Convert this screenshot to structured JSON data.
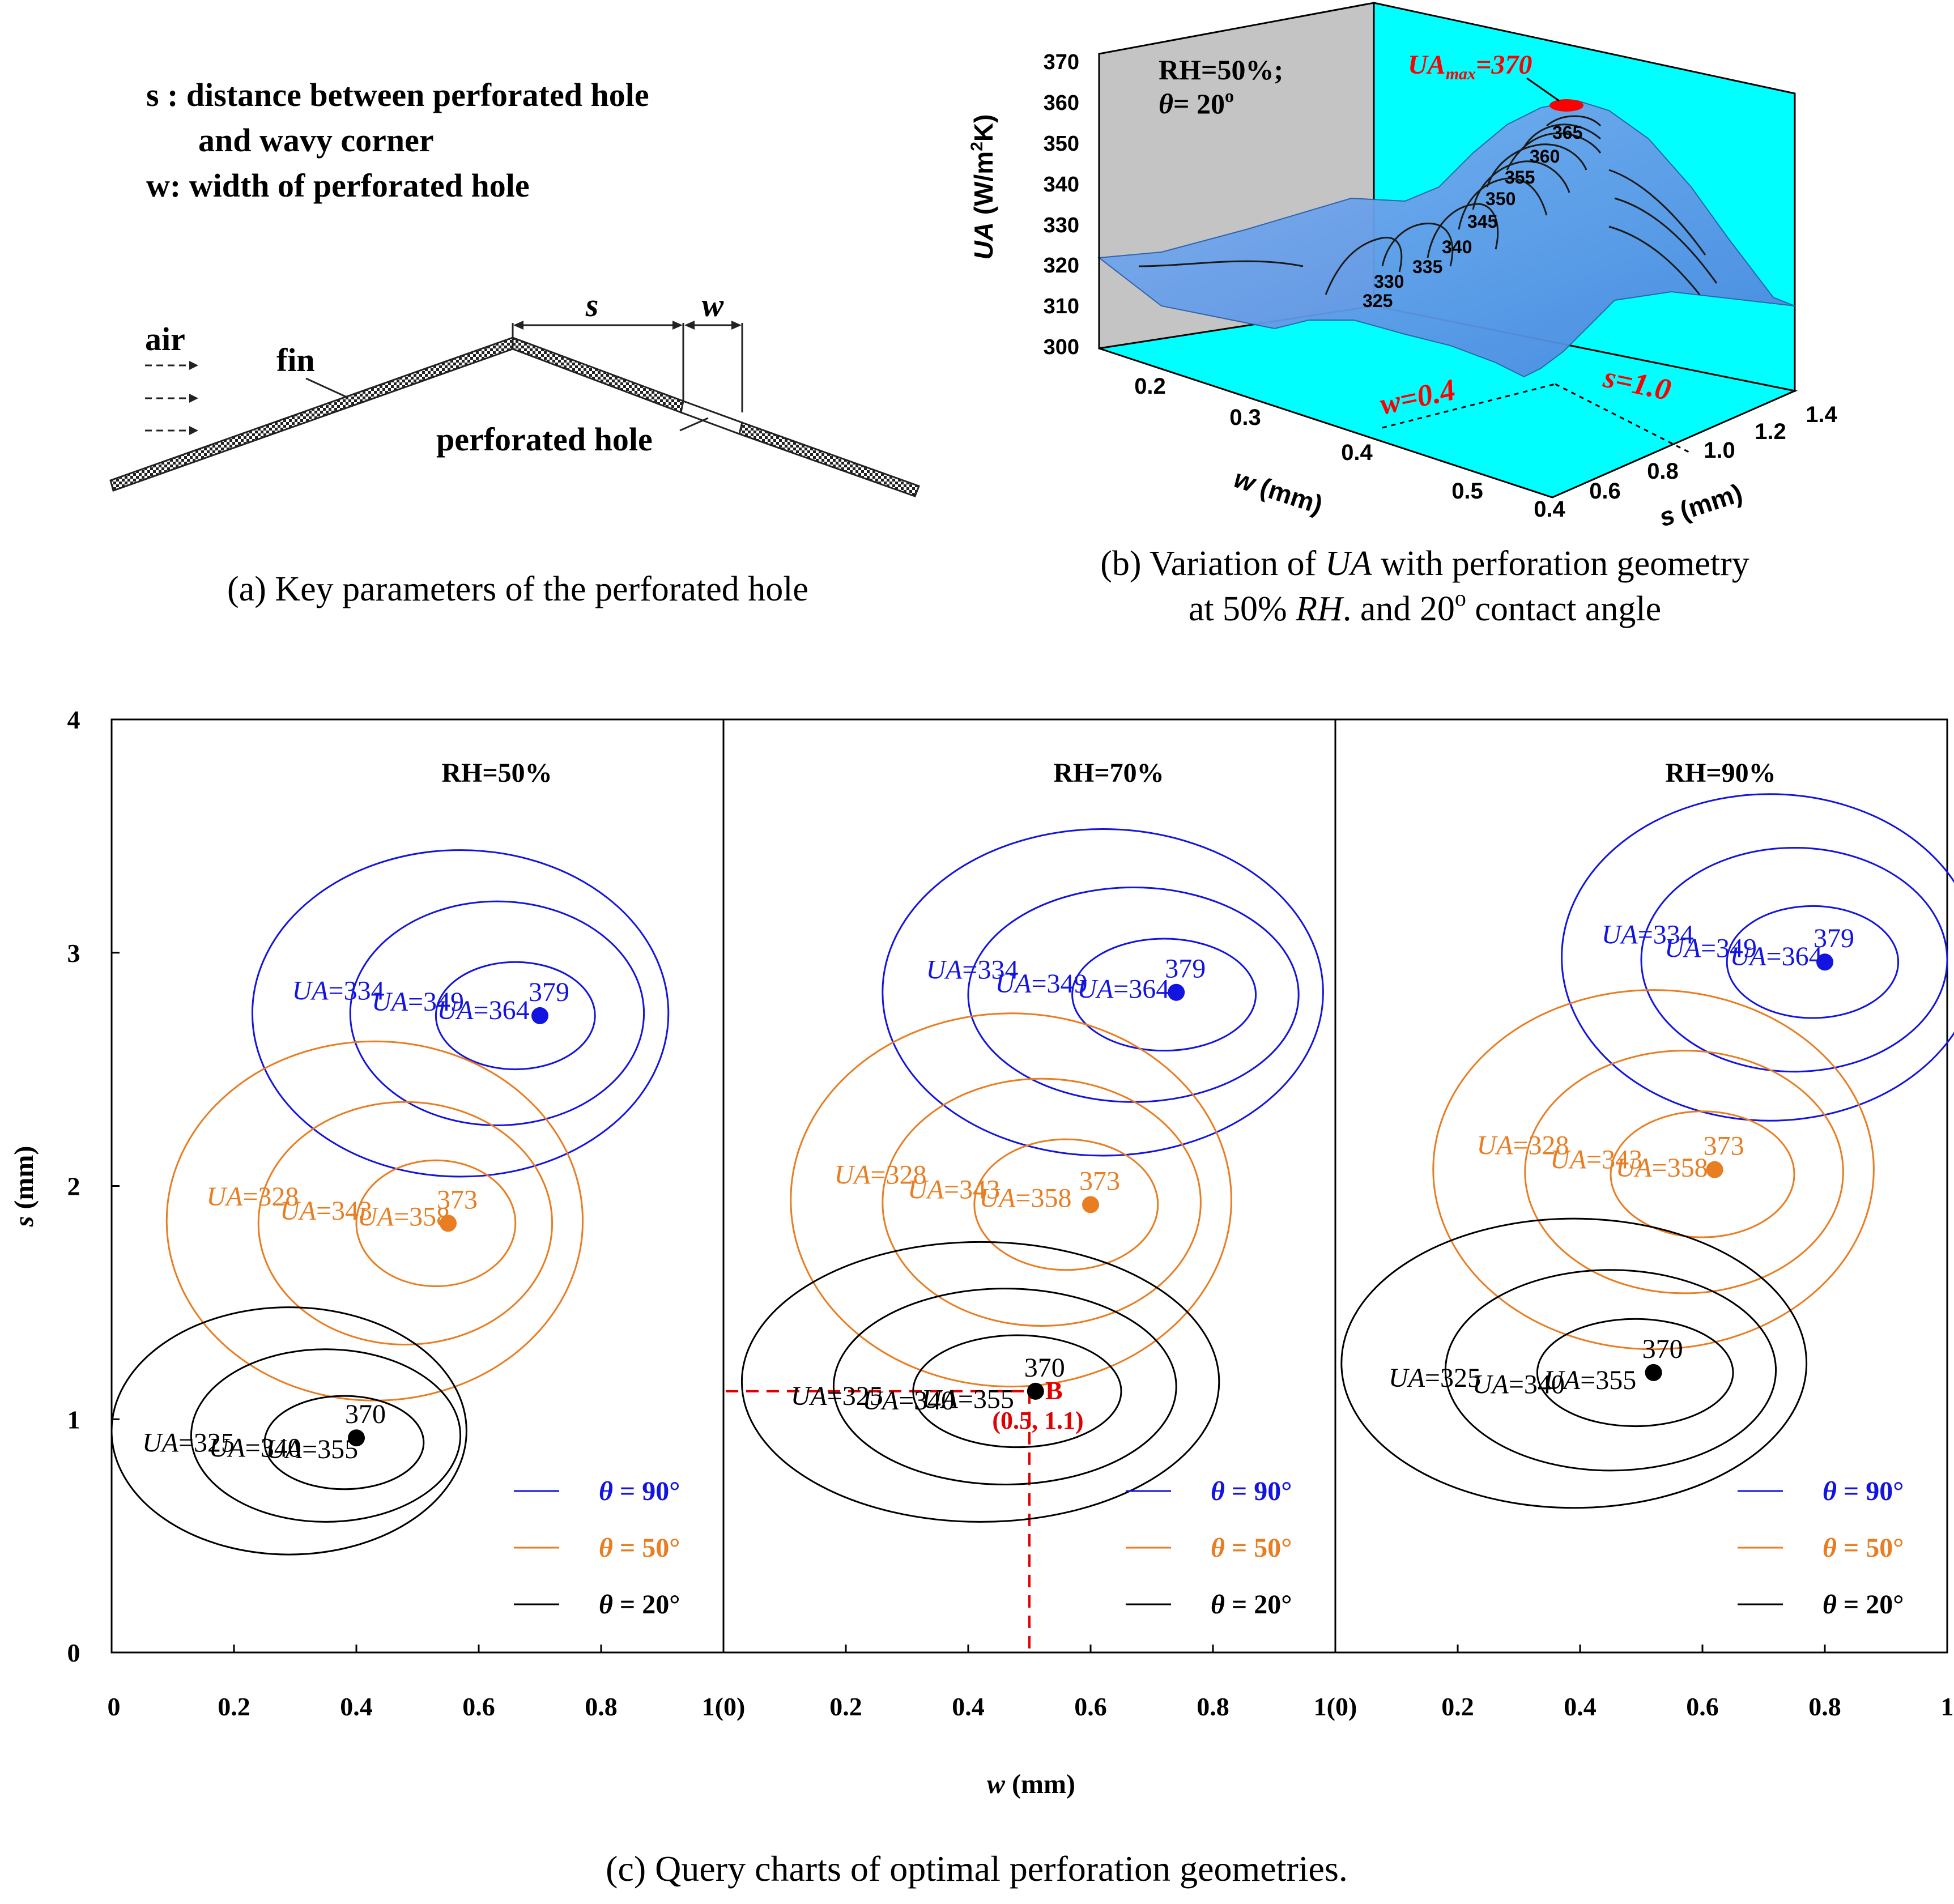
{
  "panel_a": {
    "legend_lines": [
      "s : distance between perforated hole",
      "and wavy corner",
      "w: width of perforated hole"
    ],
    "label_air": "air",
    "label_fin": "fin",
    "label_s": "s",
    "label_w": "w",
    "label_hole": "perforated hole",
    "caption": "(a) Key parameters of the perforated hole"
  },
  "panel_b": {
    "condition_line1": "RH=50%;",
    "condition_line2": "θ= 20°",
    "max_label": "UAmax=370",
    "w_marker": "w=0.4",
    "s_marker": "s=1.0",
    "caption_line1": "(b) Variation of UA with perforation geometry",
    "caption_line2": "at 50% RH. and 20° contact angle"
  },
  "panel_c_caption": "(c) Query charts of optimal perforation geometries.",
  "legend_entries": [
    {
      "label": "θ = 90°",
      "color": "#1414e0"
    },
    {
      "label": "θ = 50°",
      "color": "#e87d22"
    },
    {
      "label": "θ = 20°",
      "color": "#000000"
    }
  ],
  "chart_data": [
    {
      "type": "surface",
      "zlabel": "UA (W/m²K)",
      "xlabel": "w (mm)",
      "ylabel": "s (mm)",
      "z_ticks": [
        300,
        310,
        320,
        330,
        340,
        350,
        360,
        370
      ],
      "w_ticks": [
        0.2,
        0.3,
        0.4,
        0.5
      ],
      "s_ticks": [
        0.4,
        0.6,
        0.8,
        1.0,
        1.2,
        1.4
      ],
      "zlim": [
        300,
        370
      ],
      "contour_levels": [
        325,
        330,
        335,
        340,
        345,
        350,
        355,
        360,
        365
      ],
      "maximum": {
        "w": 0.4,
        "s": 1.0,
        "UA": 370
      }
    },
    {
      "type": "contour",
      "xlabel": "w (mm)",
      "ylabel": "s (mm)",
      "y_ticks": [
        0,
        1,
        2,
        3,
        4
      ],
      "ylim": [
        0,
        4
      ],
      "panels": [
        {
          "title": "RH=50%",
          "x_ticks": [
            "0",
            "0.2",
            "0.4",
            "0.6",
            "0.8",
            "1(0)"
          ],
          "series": [
            {
              "name": "θ = 90°",
              "optimum": {
                "w": 0.7,
                "s": 2.73,
                "UA": 379
              },
              "contours": [
                {
                  "label": "UA=334",
                  "cx": 0.57,
                  "cy": 2.74,
                  "rx": 0.34,
                  "ry": 0.7
                },
                {
                  "label": "UA=349",
                  "cx": 0.63,
                  "cy": 2.74,
                  "rx": 0.24,
                  "ry": 0.48
                },
                {
                  "label": "UA=364",
                  "cx": 0.66,
                  "cy": 2.73,
                  "rx": 0.13,
                  "ry": 0.23
                }
              ]
            },
            {
              "name": "θ = 50°",
              "optimum": {
                "w": 0.55,
                "s": 1.84,
                "UA": 373
              },
              "contours": [
                {
                  "label": "UA=328",
                  "cx": 0.43,
                  "cy": 1.85,
                  "rx": 0.34,
                  "ry": 0.77
                },
                {
                  "label": "UA=343",
                  "cx": 0.48,
                  "cy": 1.84,
                  "rx": 0.24,
                  "ry": 0.52
                },
                {
                  "label": "UA=358",
                  "cx": 0.53,
                  "cy": 1.84,
                  "rx": 0.13,
                  "ry": 0.27
                }
              ]
            },
            {
              "name": "θ = 20°",
              "optimum": {
                "w": 0.4,
                "s": 0.92,
                "UA": 370
              },
              "contours": [
                {
                  "label": "UA=325",
                  "cx": 0.29,
                  "cy": 0.95,
                  "rx": 0.29,
                  "ry": 0.53
                },
                {
                  "label": "UA=340",
                  "cx": 0.35,
                  "cy": 0.93,
                  "rx": 0.22,
                  "ry": 0.37
                },
                {
                  "label": "UA=355",
                  "cx": 0.38,
                  "cy": 0.9,
                  "rx": 0.13,
                  "ry": 0.2
                }
              ]
            }
          ]
        },
        {
          "title": "RH=70%",
          "x_ticks": [
            "0.2",
            "0.4",
            "0.6",
            "0.8",
            "1(0)"
          ],
          "point_B": {
            "label": "B",
            "coords": "(0.5, 1.1)",
            "w": 0.5,
            "s": 1.12
          },
          "series": [
            {
              "name": "θ = 90°",
              "optimum": {
                "w": 0.74,
                "s": 2.83,
                "UA": 379
              },
              "contours": [
                {
                  "label": "UA=334",
                  "cx": 0.62,
                  "cy": 2.83,
                  "rx": 0.36,
                  "ry": 0.7
                },
                {
                  "label": "UA=349",
                  "cx": 0.67,
                  "cy": 2.82,
                  "rx": 0.27,
                  "ry": 0.46
                },
                {
                  "label": "UA=364",
                  "cx": 0.72,
                  "cy": 2.82,
                  "rx": 0.15,
                  "ry": 0.24
                }
              ]
            },
            {
              "name": "θ = 50°",
              "optimum": {
                "w": 0.6,
                "s": 1.92,
                "UA": 373
              },
              "contours": [
                {
                  "label": "UA=328",
                  "cx": 0.47,
                  "cy": 1.94,
                  "rx": 0.36,
                  "ry": 0.8
                },
                {
                  "label": "UA=343",
                  "cx": 0.52,
                  "cy": 1.93,
                  "rx": 0.26,
                  "ry": 0.53
                },
                {
                  "label": "UA=358",
                  "cx": 0.56,
                  "cy": 1.92,
                  "rx": 0.15,
                  "ry": 0.28
                }
              ]
            },
            {
              "name": "θ = 20°",
              "optimum": {
                "w": 0.51,
                "s": 1.12,
                "UA": 370
              },
              "contours": [
                {
                  "label": "UA=325",
                  "cx": 0.42,
                  "cy": 1.16,
                  "rx": 0.39,
                  "ry": 0.6
                },
                {
                  "label": "UA=340",
                  "cx": 0.46,
                  "cy": 1.14,
                  "rx": 0.28,
                  "ry": 0.42
                },
                {
                  "label": "UA=355",
                  "cx": 0.48,
                  "cy": 1.12,
                  "rx": 0.17,
                  "ry": 0.24
                }
              ]
            }
          ]
        },
        {
          "title": "RH=90%",
          "x_ticks": [
            "0.2",
            "0.4",
            "0.6",
            "0.8",
            "1"
          ],
          "series": [
            {
              "name": "θ = 90°",
              "optimum": {
                "w": 0.8,
                "s": 2.96,
                "UA": 379
              },
              "contours": [
                {
                  "label": "UA=334",
                  "cx": 0.71,
                  "cy": 2.98,
                  "rx": 0.34,
                  "ry": 0.7
                },
                {
                  "label": "UA=349",
                  "cx": 0.75,
                  "cy": 2.97,
                  "rx": 0.25,
                  "ry": 0.48
                },
                {
                  "label": "UA=364",
                  "cx": 0.78,
                  "cy": 2.96,
                  "rx": 0.14,
                  "ry": 0.24
                }
              ]
            },
            {
              "name": "θ = 50°",
              "optimum": {
                "w": 0.62,
                "s": 2.07,
                "UA": 373
              },
              "contours": [
                {
                  "label": "UA=328",
                  "cx": 0.52,
                  "cy": 2.07,
                  "rx": 0.36,
                  "ry": 0.77
                },
                {
                  "label": "UA=343",
                  "cx": 0.57,
                  "cy": 2.06,
                  "rx": 0.26,
                  "ry": 0.52
                },
                {
                  "label": "UA=358",
                  "cx": 0.6,
                  "cy": 2.05,
                  "rx": 0.15,
                  "ry": 0.27
                }
              ]
            },
            {
              "name": "θ = 20°",
              "optimum": {
                "w": 0.52,
                "s": 1.2,
                "UA": 370
              },
              "contours": [
                {
                  "label": "UA=325",
                  "cx": 0.39,
                  "cy": 1.24,
                  "rx": 0.38,
                  "ry": 0.62
                },
                {
                  "label": "UA=340",
                  "cx": 0.45,
                  "cy": 1.21,
                  "rx": 0.27,
                  "ry": 0.43
                },
                {
                  "label": "UA=355",
                  "cx": 0.49,
                  "cy": 1.2,
                  "rx": 0.16,
                  "ry": 0.23
                }
              ]
            }
          ]
        }
      ]
    }
  ]
}
